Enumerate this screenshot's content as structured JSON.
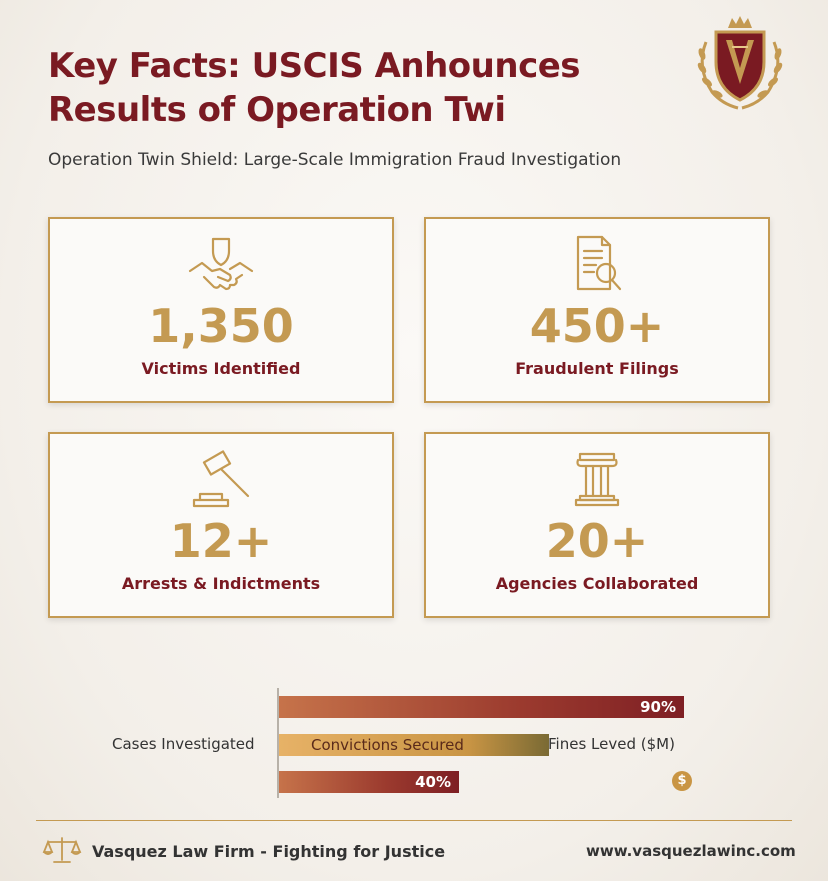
{
  "header": {
    "title": "Key Facts: USCIS Anhounces Results of Operation Twi",
    "subtitle": "Operation Twin Shield: Large-Scale Immigration Fraud Investigation",
    "logo_icon": "law-firm-crest-icon"
  },
  "stats": [
    {
      "value": "1,350",
      "label": "Victims Identified",
      "icon": "shield-handshake-icon"
    },
    {
      "value": "450+",
      "label": "Fraudulent Filings",
      "icon": "document-magnifier-icon"
    },
    {
      "value": "12+",
      "label": "Arrests & Indictments",
      "icon": "gavel-icon"
    },
    {
      "value": "20+",
      "label": "Agencies Collaborated",
      "icon": "pillar-icon"
    }
  ],
  "chart_data": {
    "type": "bar",
    "categories": [
      "Cases Investigated",
      "Convictions Secured",
      "Fines Leved ($M)"
    ],
    "series": [
      {
        "values": [
          90,
          60,
          40
        ]
      }
    ],
    "data_labels": [
      "90%",
      "",
      "40%"
    ],
    "coin_icon": "$"
  },
  "footer": {
    "firm": "Vasquez Law Firm - Fighting for Justice",
    "url": "www.vasquezlawinc.com",
    "icon": "scales-of-justice-icon"
  },
  "colors": {
    "primary": "#7a1a22",
    "gold": "#c49a52"
  }
}
